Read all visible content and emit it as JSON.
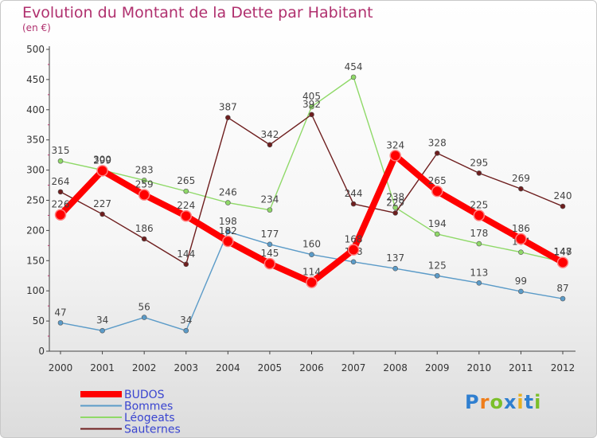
{
  "header": {
    "title": "Evolution du Montant de la Dette par Habitant",
    "subtitle": "(en €)"
  },
  "logo": {
    "text": "Proxiti"
  },
  "chart_data": {
    "type": "line",
    "title": "Evolution du Montant de la Dette par Habitant",
    "subtitle": "(en €)",
    "x": [
      "2000",
      "2001",
      "2002",
      "2003",
      "2004",
      "2005",
      "2006",
      "2007",
      "2008",
      "2009",
      "2010",
      "2011",
      "2012"
    ],
    "ylim": [
      0,
      500
    ],
    "yticks": [
      0,
      50,
      100,
      150,
      200,
      250,
      300,
      350,
      400,
      450,
      500
    ],
    "grid": false,
    "legend_position": "bottom-left",
    "series": [
      {
        "name": "Bommes",
        "color": "#5b9bc8",
        "values": [
          47,
          34,
          56,
          34,
          198,
          177,
          160,
          148,
          137,
          125,
          113,
          99,
          87
        ]
      },
      {
        "name": "Léogeats",
        "color": "#8fd968",
        "values": [
          315,
          300,
          283,
          265,
          246,
          234,
          405,
          454,
          238,
          194,
          178,
          164,
          148
        ]
      },
      {
        "name": "Sauternes",
        "color": "#6e1e1e",
        "values": [
          264,
          227,
          186,
          144,
          387,
          342,
          392,
          244,
          229,
          328,
          295,
          269,
          240
        ]
      },
      {
        "name": "BUDOS",
        "color": "#ff0000",
        "values": [
          226,
          299,
          259,
          224,
          182,
          145,
          114,
          168,
          324,
          265,
          225,
          186,
          147
        ]
      }
    ]
  }
}
